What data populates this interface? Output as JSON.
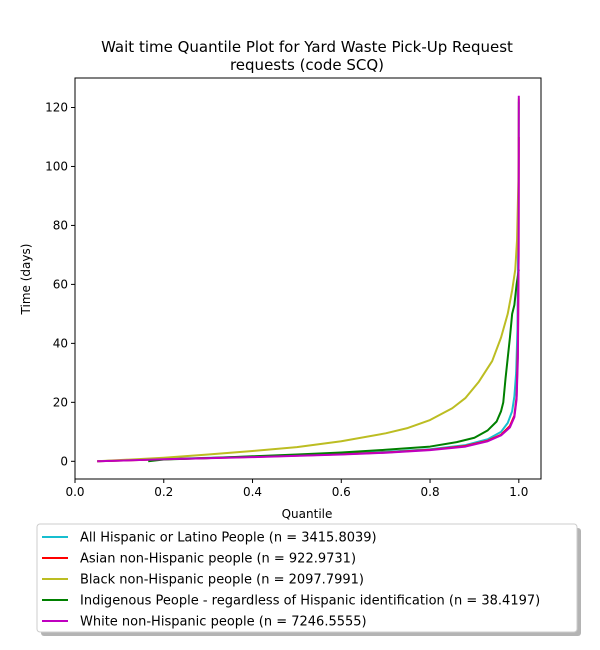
{
  "chart_data": {
    "type": "line",
    "title_line1": "Wait time Quantile Plot for Yard Waste Pick-Up Request",
    "title_line2": "requests (code SCQ)",
    "xlabel": "Quantile",
    "ylabel": "Time (days)",
    "xlim": [
      0.0,
      1.05
    ],
    "ylim": [
      -6,
      130
    ],
    "xticks": [
      0.0,
      0.2,
      0.4,
      0.6,
      0.8,
      1.0
    ],
    "xtick_labels": [
      "0.0",
      "0.2",
      "0.4",
      "0.6",
      "0.8",
      "1.0"
    ],
    "yticks": [
      0,
      20,
      40,
      60,
      80,
      100,
      120
    ],
    "ytick_labels": [
      "0",
      "20",
      "40",
      "60",
      "80",
      "100",
      "120"
    ],
    "grid": false,
    "legend_position": "below plot",
    "series": [
      {
        "name": "All Hispanic or Latino People (n = 3415.8039)",
        "color": "#17becf",
        "points": [
          [
            0.05,
            0.0
          ],
          [
            0.2,
            0.8
          ],
          [
            0.4,
            1.6
          ],
          [
            0.6,
            2.6
          ],
          [
            0.7,
            3.2
          ],
          [
            0.8,
            4.1
          ],
          [
            0.88,
            5.5
          ],
          [
            0.93,
            7.5
          ],
          [
            0.96,
            10.0
          ],
          [
            0.975,
            13.0
          ],
          [
            0.985,
            17.0
          ],
          [
            0.99,
            22.0
          ],
          [
            0.994,
            30.0
          ],
          [
            0.997,
            45.0
          ],
          [
            0.999,
            80.0
          ],
          [
            1.0,
            122.0
          ]
        ]
      },
      {
        "name": "Asian non-Hispanic people (n = 922.9731)",
        "color": "#ff0000",
        "points": [
          [
            0.05,
            0.0
          ],
          [
            0.2,
            0.7
          ],
          [
            0.4,
            1.5
          ],
          [
            0.6,
            2.4
          ],
          [
            0.7,
            3.0
          ],
          [
            0.8,
            3.9
          ],
          [
            0.88,
            5.2
          ],
          [
            0.93,
            7.0
          ],
          [
            0.96,
            9.0
          ],
          [
            0.98,
            12.0
          ],
          [
            0.99,
            15.5
          ],
          [
            0.995,
            22.0
          ],
          [
            0.998,
            40.0
          ],
          [
            0.9995,
            70.0
          ],
          [
            1.0,
            110.0
          ]
        ]
      },
      {
        "name": "Black non-Hispanic people (n = 2097.7991)",
        "color": "#bcbd22",
        "points": [
          [
            0.05,
            0.0
          ],
          [
            0.2,
            1.2
          ],
          [
            0.3,
            2.3
          ],
          [
            0.4,
            3.5
          ],
          [
            0.5,
            4.8
          ],
          [
            0.6,
            6.8
          ],
          [
            0.7,
            9.5
          ],
          [
            0.75,
            11.3
          ],
          [
            0.8,
            14.0
          ],
          [
            0.85,
            18.0
          ],
          [
            0.88,
            21.5
          ],
          [
            0.91,
            27.0
          ],
          [
            0.94,
            34.0
          ],
          [
            0.96,
            42.0
          ],
          [
            0.975,
            50.0
          ],
          [
            0.985,
            58.0
          ],
          [
            0.992,
            65.0
          ],
          [
            0.996,
            75.0
          ],
          [
            0.999,
            95.0
          ],
          [
            1.0,
            123.0
          ]
        ]
      },
      {
        "name": "Indigenous People - regardless of Hispanic identification (n = 38.4197)",
        "color": "#008000",
        "points": [
          [
            0.165,
            0.0
          ],
          [
            0.2,
            0.6
          ],
          [
            0.3,
            1.1
          ],
          [
            0.4,
            1.7
          ],
          [
            0.5,
            2.3
          ],
          [
            0.6,
            3.0
          ],
          [
            0.7,
            3.9
          ],
          [
            0.8,
            5.0
          ],
          [
            0.86,
            6.5
          ],
          [
            0.9,
            8.0
          ],
          [
            0.93,
            10.5
          ],
          [
            0.95,
            13.5
          ],
          [
            0.96,
            17.0
          ],
          [
            0.965,
            20.0
          ],
          [
            0.97,
            28.0
          ],
          [
            0.975,
            35.0
          ],
          [
            0.98,
            42.0
          ],
          [
            0.985,
            50.0
          ],
          [
            0.99,
            53.0
          ],
          [
            0.995,
            60.0
          ],
          [
            1.0,
            65.0
          ]
        ]
      },
      {
        "name": "White non-Hispanic people (n = 7246.5555)",
        "color": "#bf00bf",
        "points": [
          [
            0.05,
            0.0
          ],
          [
            0.2,
            0.7
          ],
          [
            0.4,
            1.4
          ],
          [
            0.6,
            2.3
          ],
          [
            0.7,
            2.9
          ],
          [
            0.8,
            3.8
          ],
          [
            0.88,
            5.0
          ],
          [
            0.93,
            6.8
          ],
          [
            0.96,
            8.8
          ],
          [
            0.98,
            11.5
          ],
          [
            0.99,
            15.0
          ],
          [
            0.995,
            21.0
          ],
          [
            0.998,
            35.0
          ],
          [
            0.9995,
            70.0
          ],
          [
            1.0,
            124.0
          ]
        ]
      }
    ]
  }
}
